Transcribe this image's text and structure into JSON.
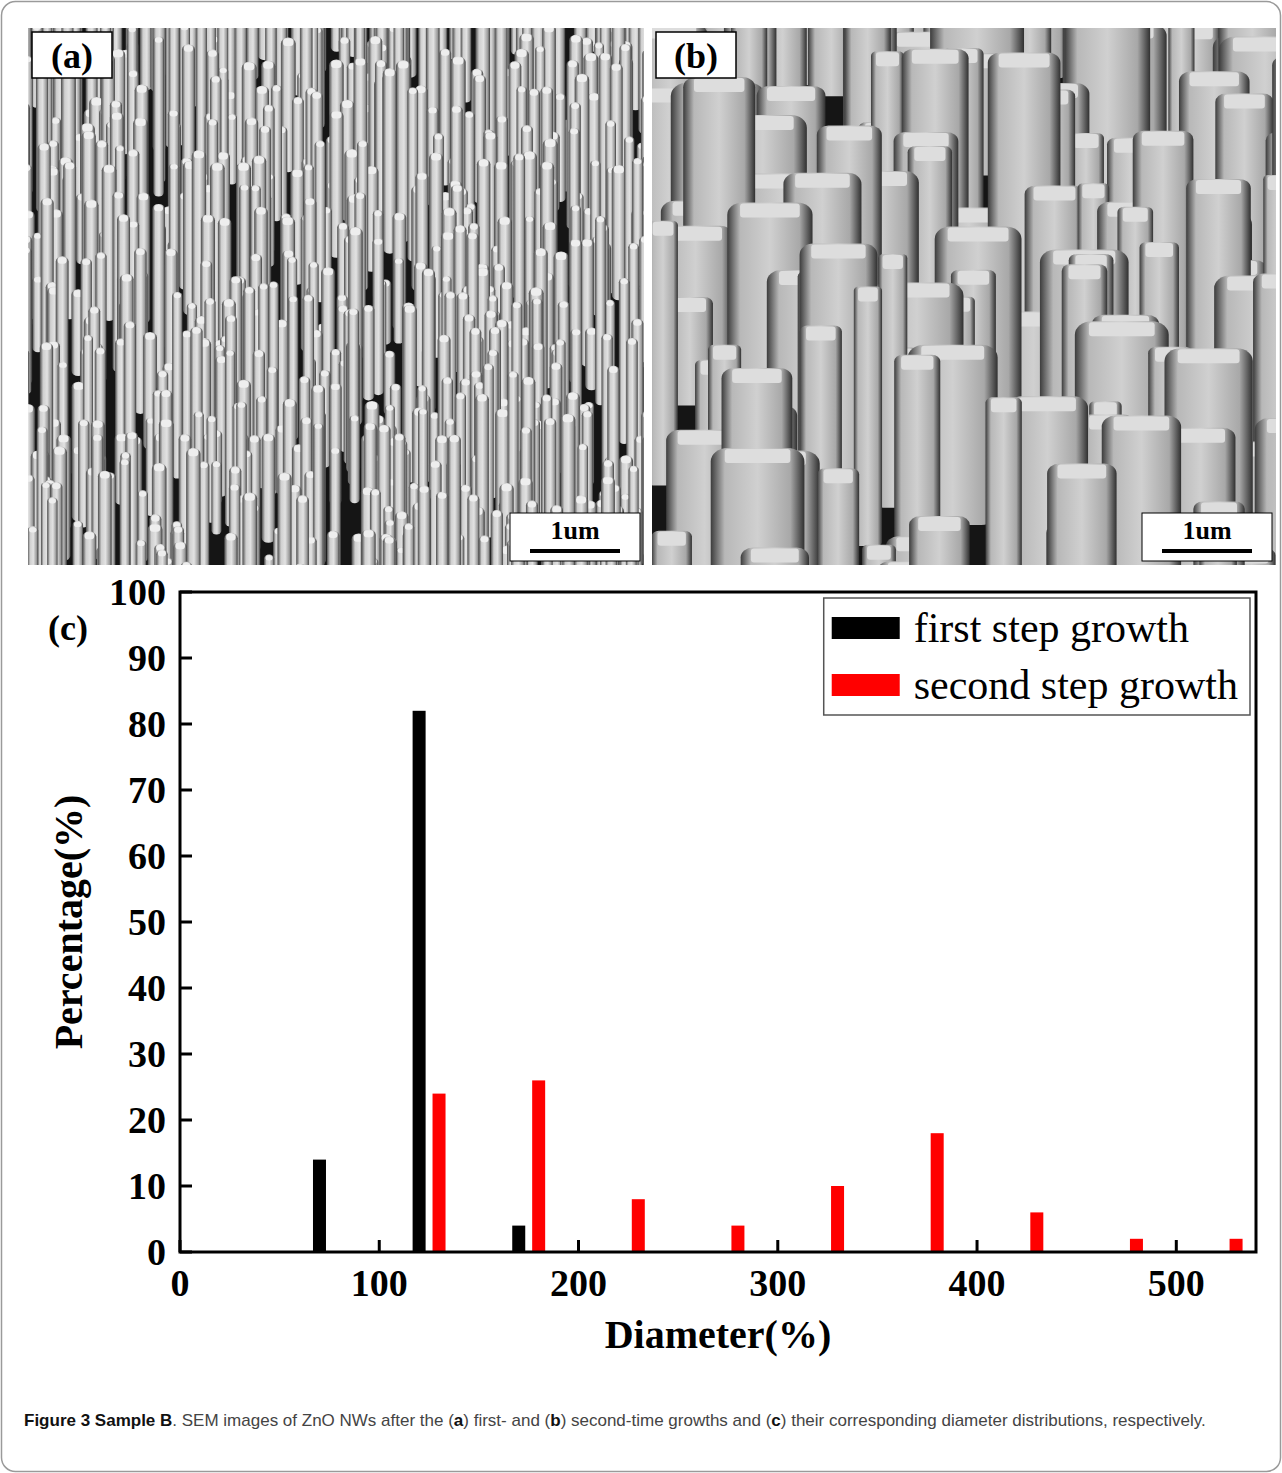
{
  "panels": [
    {
      "label": "(a)",
      "scale_bar": "1um"
    },
    {
      "label": "(b)",
      "scale_bar": "1um"
    }
  ],
  "chart_data": {
    "type": "bar",
    "panel_label": "(c)",
    "x_label": "Diameter(%)",
    "y_label": "Percentage(%)",
    "series": [
      {
        "name": "first step growth",
        "color": "#000000",
        "x": [
          70,
          120,
          170
        ],
        "values": [
          14,
          82,
          4
        ]
      },
      {
        "name": "second step growth",
        "color": "#ff0000",
        "x": [
          130,
          180,
          230,
          280,
          330,
          380,
          430,
          480,
          530
        ],
        "values": [
          24,
          26,
          8,
          4,
          10,
          18,
          6,
          2,
          2
        ]
      }
    ],
    "xlim": [
      0,
      540
    ],
    "ylim": [
      0,
      100
    ],
    "xticks": [
      0,
      100,
      200,
      300,
      400,
      500
    ],
    "yticks": [
      0,
      10,
      20,
      30,
      40,
      50,
      60,
      70,
      80,
      90,
      100
    ],
    "legend": "upper right",
    "grid": false
  },
  "caption": [
    {
      "text": "Figure 3 Sample B",
      "bold": true
    },
    {
      "text": ". SEM images of ZnO NWs after the (",
      "bold": false
    },
    {
      "text": "a",
      "bold": true
    },
    {
      "text": ") first- and (",
      "bold": false
    },
    {
      "text": "b",
      "bold": true
    },
    {
      "text": ") second-time growths and (",
      "bold": false
    },
    {
      "text": "c",
      "bold": true
    },
    {
      "text": ") their corresponding diameter distributions, respectively.",
      "bold": false
    }
  ]
}
